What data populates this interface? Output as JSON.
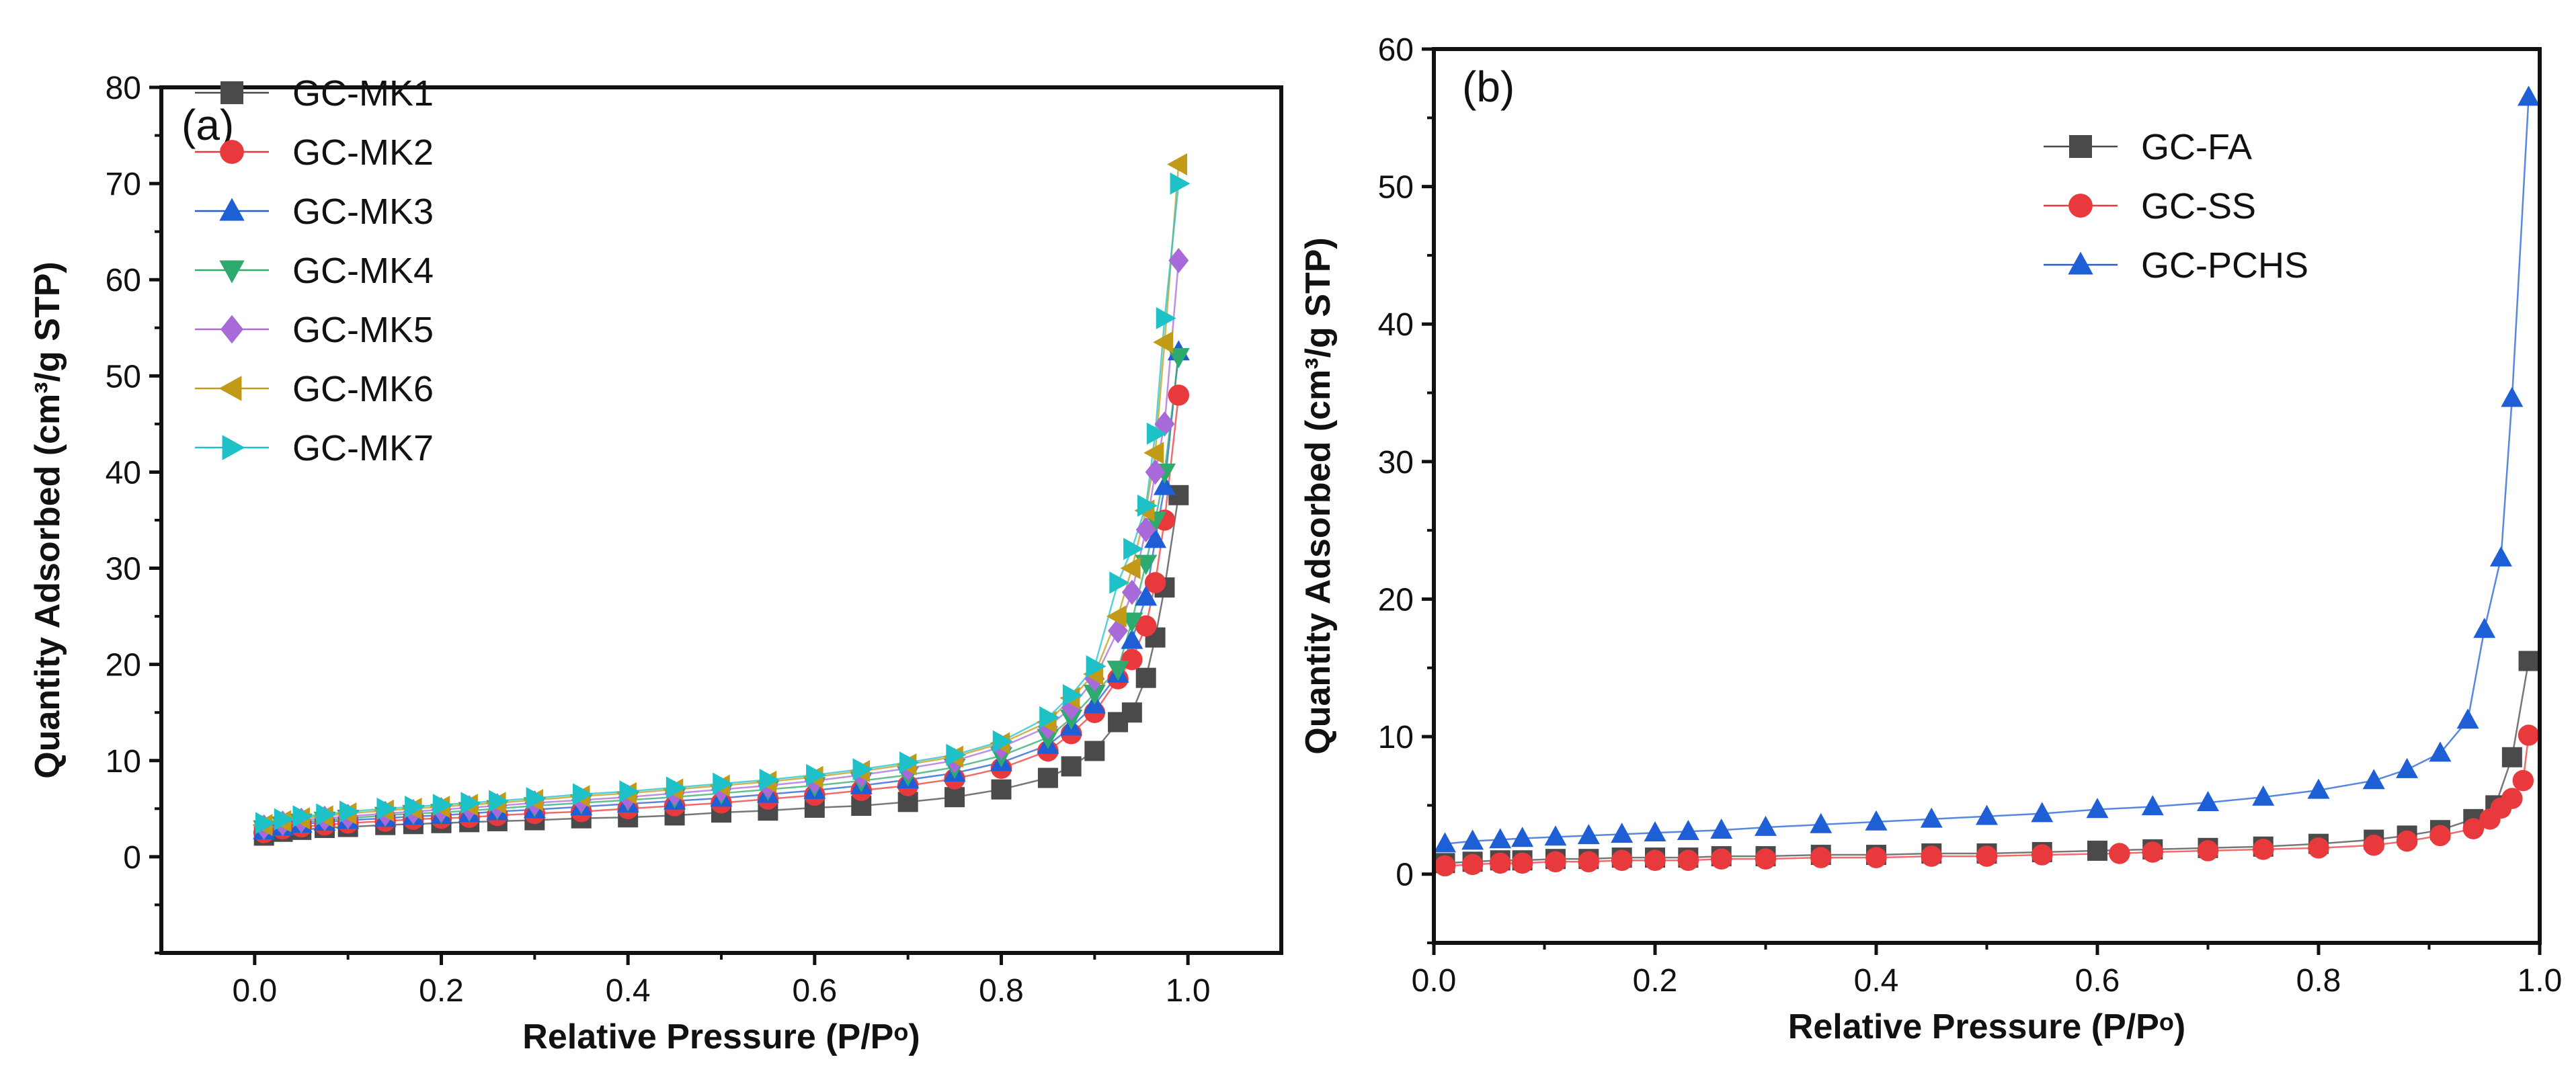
{
  "chart_data": [
    {
      "type": "scatter",
      "panel_label": "(a)",
      "xlabel": "Relative Pressure (P/P",
      "xlabel_sup": "o",
      "xlabel_close": ")",
      "ylabel": "Quantity Adsorbed (cm³/g STP)",
      "xlim": [
        -0.1,
        1.1
      ],
      "ylim": [
        -10,
        80
      ],
      "xticks": [
        "0.0",
        "0.2",
        "0.4",
        "0.6",
        "0.8",
        "1.0"
      ],
      "xtick_values": [
        0,
        0.2,
        0.4,
        0.6,
        0.8,
        1.0
      ],
      "yticks": [
        "0",
        "10",
        "20",
        "30",
        "40",
        "50",
        "60",
        "70",
        "80"
      ],
      "ytick_values": [
        0,
        10,
        20,
        30,
        40,
        50,
        60,
        70,
        80
      ],
      "legend_position": "top-left",
      "x": [
        0.01,
        0.03,
        0.05,
        0.075,
        0.1,
        0.14,
        0.17,
        0.2,
        0.23,
        0.26,
        0.3,
        0.35,
        0.4,
        0.45,
        0.5,
        0.55,
        0.6,
        0.65,
        0.7,
        0.75,
        0.8,
        0.85,
        0.875,
        0.9,
        0.925,
        0.94,
        0.955,
        0.965,
        0.975,
        0.99
      ],
      "series": [
        {
          "name": "GC-MK1",
          "color": "#4a4a4a",
          "marker": "square",
          "values": [
            2.2,
            2.6,
            2.8,
            3.0,
            3.1,
            3.3,
            3.4,
            3.5,
            3.6,
            3.7,
            3.8,
            4.0,
            4.1,
            4.3,
            4.6,
            4.8,
            5.1,
            5.3,
            5.7,
            6.2,
            7.0,
            8.2,
            9.4,
            11.0,
            14.0,
            15.0,
            18.6,
            22.8,
            28.0,
            37.6
          ]
        },
        {
          "name": "GC-MK2",
          "color": "#e8393d",
          "marker": "circle",
          "values": [
            2.5,
            2.9,
            3.1,
            3.3,
            3.5,
            3.7,
            3.9,
            4.0,
            4.1,
            4.3,
            4.5,
            4.7,
            5.0,
            5.3,
            5.6,
            6.0,
            6.4,
            6.9,
            7.4,
            8.1,
            9.2,
            11.0,
            12.8,
            15.0,
            18.5,
            20.5,
            24.0,
            28.5,
            35.0,
            48.0
          ]
        },
        {
          "name": "GC-MK3",
          "color": "#1f5fd6",
          "marker": "triangle-up",
          "values": [
            2.7,
            3.1,
            3.4,
            3.6,
            3.8,
            4.0,
            4.2,
            4.3,
            4.5,
            4.7,
            4.9,
            5.2,
            5.5,
            5.8,
            6.1,
            6.5,
            6.9,
            7.4,
            8.0,
            8.7,
            9.8,
            11.6,
            13.5,
            15.8,
            19.0,
            22.5,
            27.0,
            33.0,
            38.5,
            52.5
          ]
        },
        {
          "name": "GC-MK4",
          "color": "#2eaa6e",
          "marker": "triangle-down",
          "values": [
            2.9,
            3.3,
            3.6,
            3.8,
            4.0,
            4.3,
            4.5,
            4.6,
            4.8,
            5.0,
            5.3,
            5.6,
            5.9,
            6.2,
            6.6,
            7.0,
            7.4,
            7.9,
            8.5,
            9.3,
            10.5,
            12.4,
            14.4,
            17.0,
            19.5,
            24.5,
            30.5,
            35.0,
            40.0,
            52.0
          ]
        },
        {
          "name": "GC-MK5",
          "color": "#a86ad8",
          "marker": "diamond",
          "values": [
            3.1,
            3.5,
            3.8,
            4.0,
            4.2,
            4.5,
            4.7,
            4.9,
            5.1,
            5.3,
            5.6,
            5.9,
            6.2,
            6.6,
            7.0,
            7.4,
            7.9,
            8.5,
            9.2,
            10.0,
            11.4,
            13.5,
            15.5,
            18.5,
            23.5,
            27.5,
            34.0,
            40.0,
            45.0,
            62.0
          ]
        },
        {
          "name": "GC-MK6",
          "color": "#c39a17",
          "marker": "triangle-left",
          "values": [
            3.3,
            3.7,
            4.0,
            4.2,
            4.5,
            4.8,
            5.0,
            5.2,
            5.4,
            5.6,
            5.9,
            6.3,
            6.6,
            7.0,
            7.4,
            7.8,
            8.3,
            8.9,
            9.6,
            10.4,
            11.8,
            14.0,
            16.5,
            19.0,
            25.0,
            30.0,
            36.0,
            42.0,
            53.5,
            72.0
          ]
        },
        {
          "name": "GC-MK7",
          "color": "#1fc1c9",
          "marker": "triangle-right",
          "values": [
            3.5,
            3.9,
            4.2,
            4.4,
            4.7,
            5.0,
            5.2,
            5.4,
            5.6,
            5.8,
            6.1,
            6.5,
            6.8,
            7.2,
            7.6,
            8.0,
            8.5,
            9.1,
            9.8,
            10.6,
            12.0,
            14.5,
            16.8,
            19.8,
            28.5,
            32.0,
            36.5,
            44.0,
            56.0,
            70.0
          ]
        }
      ]
    },
    {
      "type": "scatter",
      "panel_label": "(b)",
      "xlabel": "Relative Pressure (P/P",
      "xlabel_sup": "o",
      "xlabel_close": ")",
      "ylabel": "Quantity Adsorbed (cm³/g STP)",
      "xlim": [
        0.0,
        1.0
      ],
      "ylim": [
        -5,
        60
      ],
      "xticks": [
        "0.0",
        "0.2",
        "0.4",
        "0.6",
        "0.8",
        "1.0"
      ],
      "xtick_values": [
        0,
        0.2,
        0.4,
        0.6,
        0.8,
        1.0
      ],
      "yticks": [
        "0",
        "10",
        "20",
        "30",
        "40",
        "50",
        "60"
      ],
      "ytick_values": [
        0,
        10,
        20,
        30,
        40,
        50,
        60
      ],
      "legend_position": "top-right",
      "series": [
        {
          "name": "GC-FA",
          "color": "#4a4a4a",
          "marker": "square",
          "x": [
            0.01,
            0.035,
            0.06,
            0.08,
            0.11,
            0.14,
            0.17,
            0.2,
            0.23,
            0.26,
            0.3,
            0.35,
            0.4,
            0.45,
            0.5,
            0.55,
            0.6,
            0.65,
            0.7,
            0.75,
            0.8,
            0.85,
            0.88,
            0.91,
            0.94,
            0.96,
            0.975,
            0.99
          ],
          "y": [
            0.8,
            0.9,
            1.0,
            1.0,
            1.1,
            1.1,
            1.2,
            1.2,
            1.2,
            1.3,
            1.3,
            1.4,
            1.4,
            1.5,
            1.5,
            1.6,
            1.7,
            1.8,
            1.9,
            2.0,
            2.2,
            2.5,
            2.8,
            3.2,
            4.0,
            5.0,
            8.5,
            15.5
          ]
        },
        {
          "name": "GC-SS",
          "color": "#e8393d",
          "marker": "circle",
          "x": [
            0.01,
            0.035,
            0.06,
            0.08,
            0.11,
            0.14,
            0.17,
            0.2,
            0.23,
            0.26,
            0.3,
            0.35,
            0.4,
            0.45,
            0.5,
            0.55,
            0.62,
            0.65,
            0.7,
            0.75,
            0.8,
            0.85,
            0.88,
            0.91,
            0.94,
            0.955,
            0.965,
            0.975,
            0.985,
            0.99
          ],
          "y": [
            0.6,
            0.7,
            0.8,
            0.8,
            0.9,
            0.9,
            1.0,
            1.0,
            1.0,
            1.1,
            1.1,
            1.2,
            1.2,
            1.3,
            1.3,
            1.4,
            1.5,
            1.6,
            1.7,
            1.8,
            1.9,
            2.1,
            2.4,
            2.8,
            3.3,
            4.0,
            4.8,
            5.5,
            6.8,
            10.1
          ]
        },
        {
          "name": "GC-PCHS",
          "color": "#1f5fd6",
          "marker": "triangle-up",
          "x": [
            0.01,
            0.035,
            0.06,
            0.08,
            0.11,
            0.14,
            0.17,
            0.2,
            0.23,
            0.26,
            0.3,
            0.35,
            0.4,
            0.45,
            0.5,
            0.55,
            0.6,
            0.65,
            0.7,
            0.75,
            0.8,
            0.85,
            0.88,
            0.91,
            0.935,
            0.95,
            0.965,
            0.975,
            0.99
          ],
          "y": [
            2.2,
            2.4,
            2.5,
            2.6,
            2.7,
            2.8,
            2.9,
            3.0,
            3.1,
            3.2,
            3.4,
            3.6,
            3.8,
            4.0,
            4.2,
            4.4,
            4.7,
            4.9,
            5.2,
            5.6,
            6.1,
            6.8,
            7.6,
            8.8,
            11.2,
            17.8,
            23.0,
            34.6,
            56.5
          ]
        }
      ]
    }
  ]
}
